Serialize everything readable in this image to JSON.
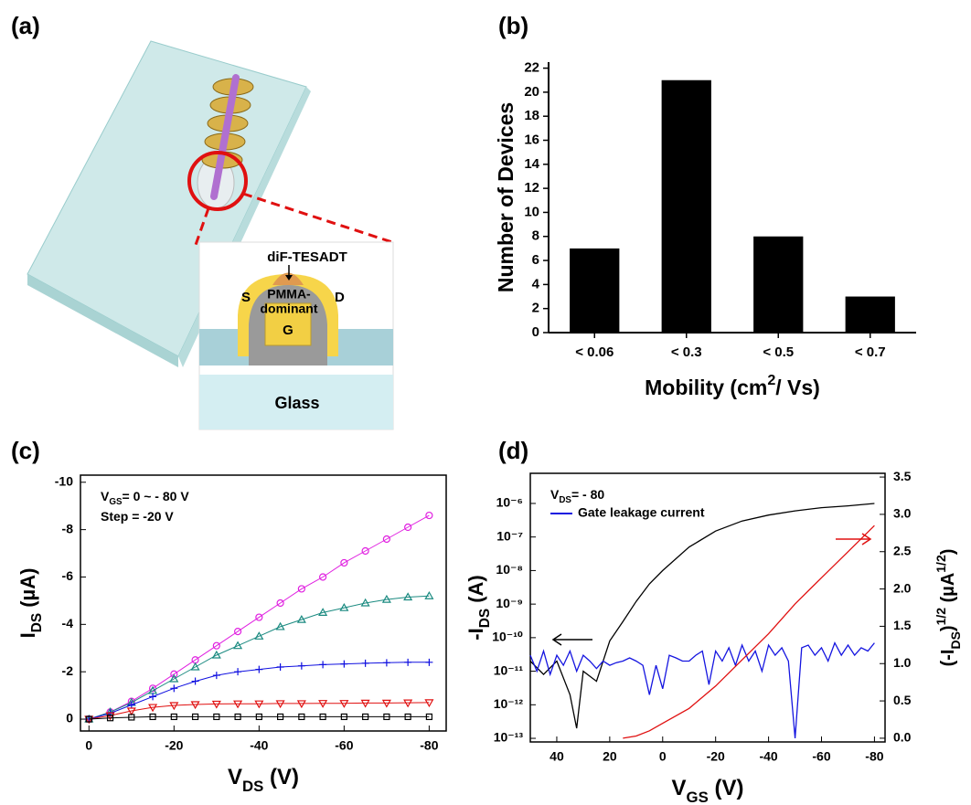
{
  "diagram": {
    "panel_label": "(a)",
    "labels": {
      "molecule": "diF-TESADT",
      "source": "S",
      "drain": "D",
      "dielectric_1": "PMMA-",
      "dielectric_2": "dominant",
      "gate": "G",
      "substrate": "Glass"
    }
  },
  "chart_data": [
    {
      "type": "bar",
      "panel_label": "(b)",
      "categories": [
        "< 0.06",
        "< 0.3",
        "< 0.5",
        "< 0.7"
      ],
      "values": [
        7,
        21,
        8,
        3
      ],
      "color": "#000000",
      "xlabel": [
        {
          "text": "Mobility  (cm"
        },
        {
          "text": "2",
          "sup": true
        },
        {
          "text": "/ Vs)"
        }
      ],
      "ylabel": [
        {
          "text": "Number of Devices"
        }
      ],
      "ylim": [
        0,
        22.5
      ],
      "yticks": [
        0,
        2,
        4,
        6,
        8,
        10,
        12,
        14,
        16,
        18,
        20,
        22
      ]
    },
    {
      "type": "line",
      "panel_label": "(c)",
      "xlabel": [
        {
          "text": "V"
        },
        {
          "text": "DS",
          "sub": true
        },
        {
          "text": " (V)"
        }
      ],
      "ylabel": [
        {
          "text": "I"
        },
        {
          "text": "DS",
          "sub": true
        },
        {
          "text": " (µA)"
        }
      ],
      "annotations": [
        [
          {
            "text": "V"
          },
          {
            "text": "GS",
            "sub": true
          },
          {
            "text": "= 0 ~ - 80 V"
          }
        ],
        [
          {
            "text": "Step = -20 V"
          }
        ]
      ],
      "x": [
        0,
        -5,
        -10,
        -15,
        -20,
        -25,
        -30,
        -35,
        -40,
        -45,
        -50,
        -55,
        -60,
        -65,
        -70,
        -75,
        -80
      ],
      "series": [
        {
          "color": "#e020e0",
          "marker": "circle",
          "values": [
            0,
            -0.3,
            -0.75,
            -1.3,
            -1.9,
            -2.5,
            -3.1,
            -3.7,
            -4.3,
            -4.9,
            -5.5,
            -6.0,
            -6.6,
            -7.1,
            -7.6,
            -8.1,
            -8.6
          ]
        },
        {
          "color": "#1a8a80",
          "marker": "triangle",
          "values": [
            0,
            -0.3,
            -0.7,
            -1.2,
            -1.7,
            -2.2,
            -2.7,
            -3.1,
            -3.5,
            -3.9,
            -4.2,
            -4.5,
            -4.7,
            -4.9,
            -5.05,
            -5.15,
            -5.2
          ]
        },
        {
          "color": "#1010e0",
          "marker": "plus",
          "values": [
            0,
            -0.25,
            -0.6,
            -0.95,
            -1.3,
            -1.6,
            -1.85,
            -2.0,
            -2.1,
            -2.2,
            -2.25,
            -2.3,
            -2.33,
            -2.36,
            -2.38,
            -2.4,
            -2.4
          ]
        },
        {
          "color": "#e01010",
          "marker": "triangle-down",
          "values": [
            0,
            -0.15,
            -0.35,
            -0.5,
            -0.58,
            -0.62,
            -0.64,
            -0.65,
            -0.65,
            -0.66,
            -0.66,
            -0.67,
            -0.67,
            -0.68,
            -0.68,
            -0.69,
            -0.7
          ]
        },
        {
          "color": "#000000",
          "marker": "square",
          "values": [
            0,
            -0.05,
            -0.08,
            -0.1,
            -0.1,
            -0.1,
            -0.1,
            -0.1,
            -0.1,
            -0.1,
            -0.1,
            -0.1,
            -0.1,
            -0.1,
            -0.1,
            -0.1,
            -0.1
          ]
        }
      ],
      "xlim": [
        2,
        -84
      ],
      "ylim": [
        0.5,
        -10.3
      ],
      "xticks": [
        0,
        -20,
        -40,
        -60,
        -80
      ],
      "yticks": [
        0,
        -2,
        -4,
        -6,
        -8,
        -10
      ]
    },
    {
      "type": "line",
      "panel_label": "(d)",
      "xlabel": [
        {
          "text": "V"
        },
        {
          "text": "GS",
          "sub": true
        },
        {
          "text": " (V)"
        }
      ],
      "ylabel": [
        {
          "text": "-I"
        },
        {
          "text": "DS",
          "sub": true
        },
        {
          "text": " (A)"
        }
      ],
      "y2label": [
        {
          "text": "(-I"
        },
        {
          "text": "DS",
          "sub": true
        },
        {
          "text": ")"
        },
        {
          "text": "1/2",
          "sup": true
        },
        {
          "text": " (µA"
        },
        {
          "text": "1/2",
          "sup": true
        },
        {
          "text": ")"
        }
      ],
      "annotations": [
        [
          {
            "text": "V"
          },
          {
            "text": "DS",
            "sub": true
          },
          {
            "text": "= - 80"
          }
        ]
      ],
      "legend": "upper left",
      "log_y": true,
      "series": [
        {
          "color": "#000000",
          "x": [
            50,
            45,
            40,
            35,
            32.5,
            30,
            25,
            20,
            15,
            10,
            5,
            0,
            -10,
            -20,
            -30,
            -40,
            -50,
            -60,
            -70,
            -80
          ],
          "values": [
            2e-11,
            8e-12,
            2e-11,
            2e-12,
            2e-13,
            1e-11,
            5e-12,
            8e-11,
            3e-10,
            1.2e-09,
            4e-09,
            1e-08,
            5e-08,
            1.5e-07,
            3e-07,
            4.5e-07,
            6e-07,
            7.5e-07,
            8.5e-07,
            1e-06
          ]
        },
        {
          "name": "Gate leakage current",
          "color": "#1515e0",
          "x": [
            50,
            47.5,
            45,
            42.5,
            40,
            37.5,
            35,
            32.5,
            30,
            27.5,
            25,
            22.5,
            20,
            17.5,
            15,
            12.5,
            10,
            7.5,
            5,
            2.5,
            0,
            -2.5,
            -5,
            -7.5,
            -10,
            -12.5,
            -15,
            -17.5,
            -20,
            -22.5,
            -25,
            -27.5,
            -30,
            -32.5,
            -35,
            -37.5,
            -40,
            -42.5,
            -45,
            -47.5,
            -50,
            -52.5,
            -55,
            -57.5,
            -60,
            -62.5,
            -65,
            -67.5,
            -70,
            -72.5,
            -75,
            -77.5,
            -80
          ],
          "values": [
            3e-11,
            1e-11,
            4e-11,
            8e-12,
            3e-11,
            1.5e-11,
            4e-11,
            1e-11,
            3e-11,
            2e-11,
            1.2e-11,
            2e-11,
            1.5e-11,
            1.8e-11,
            2e-11,
            2.5e-11,
            2e-11,
            1.5e-11,
            2e-12,
            1.5e-11,
            3e-12,
            3e-11,
            2.5e-11,
            2e-11,
            2e-11,
            3e-11,
            4e-11,
            4e-12,
            4e-11,
            2e-11,
            5e-11,
            1.5e-11,
            6e-11,
            2e-11,
            4e-11,
            1e-11,
            6e-11,
            3e-11,
            5e-11,
            2e-11,
            1e-13,
            5e-11,
            6e-11,
            3e-11,
            5e-11,
            2e-11,
            7e-11,
            3e-11,
            6e-11,
            3e-11,
            5e-11,
            4e-11,
            7e-11
          ]
        },
        {
          "color": "#e01010",
          "axis": "y2",
          "x": [
            15,
            10,
            5,
            0,
            -10,
            -20,
            -30,
            -40,
            -50,
            -60,
            -70,
            -80
          ],
          "values": [
            0,
            0.03,
            0.1,
            0.2,
            0.4,
            0.7,
            1.05,
            1.4,
            1.8,
            2.15,
            2.5,
            2.85
          ]
        }
      ],
      "xlim": [
        50,
        -84
      ],
      "ylim": [
        7.8e-14,
        7.9e-06
      ],
      "y2lim": [
        -0.05,
        3.55
      ],
      "xticks": [
        40,
        20,
        0,
        -20,
        -40,
        -60,
        -80
      ],
      "yticks": [
        {
          "value": 1e-13,
          "label": "10⁻¹³"
        },
        {
          "value": 1e-12,
          "label": "10⁻¹²"
        },
        {
          "value": 1e-11,
          "label": "10⁻¹¹"
        },
        {
          "value": 1e-10,
          "label": "10⁻¹⁰"
        },
        {
          "value": 1e-09,
          "label": "10⁻⁹"
        },
        {
          "value": 1e-08,
          "label": "10⁻⁸"
        },
        {
          "value": 1e-07,
          "label": "10⁻⁷"
        },
        {
          "value": 1e-06,
          "label": "10⁻⁶"
        }
      ],
      "y2ticks": [
        {
          "value": 0,
          "label": "0.0"
        },
        {
          "value": 0.5,
          "label": "0.5"
        },
        {
          "value": 1,
          "label": "1.0"
        },
        {
          "value": 1.5,
          "label": "1.5"
        },
        {
          "value": 2,
          "label": "2.0"
        },
        {
          "value": 2.5,
          "label": "2.5"
        },
        {
          "value": 3,
          "label": "3.0"
        },
        {
          "value": 3.5,
          "label": "3.5"
        }
      ]
    }
  ]
}
